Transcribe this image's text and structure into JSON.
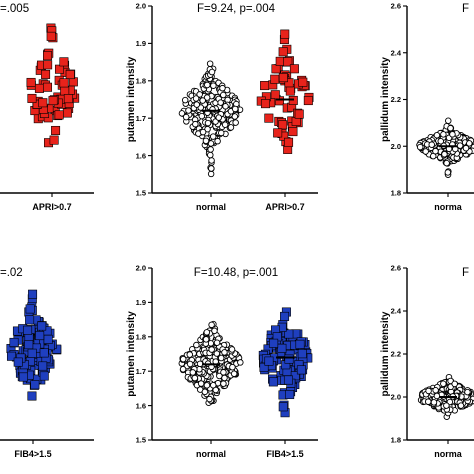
{
  "chart_data": [
    {
      "type": "scatter",
      "panel": "top-left",
      "annotation": "=.005",
      "categories": [
        "APRI>0.7"
      ],
      "series": [
        {
          "category": "APRI>0.7",
          "color": "#e8231b",
          "marker": "square",
          "n": 60,
          "center": 1.76,
          "spread": 0.065
        }
      ]
    },
    {
      "type": "scatter",
      "panel": "top-middle",
      "annotation": "F=9.24, p=.004",
      "ylabel": "putamen intensity",
      "ylim": [
        1.5,
        2.0
      ],
      "yticks": [
        "1.5",
        "1.6",
        "1.7",
        "1.8",
        "1.9",
        "2.0"
      ],
      "categories": [
        "normal",
        "APRI>0.7"
      ],
      "series": [
        {
          "category": "normal",
          "color": "#000000",
          "marker": "circle",
          "n": 260,
          "center": 1.72,
          "spread": 0.05,
          "mean": 1.72
        },
        {
          "category": "APRI>0.7",
          "color": "#e8231b",
          "marker": "square",
          "n": 60,
          "center": 1.755,
          "spread": 0.065,
          "mean": 1.75
        }
      ]
    },
    {
      "type": "scatter",
      "panel": "top-right",
      "annotation": "F",
      "ylabel": "pallidum intensity",
      "ylim": [
        1.8,
        2.6
      ],
      "yticks": [
        "1.8",
        "2.0",
        "2.2",
        "2.4",
        "2.6"
      ],
      "categories": [
        "norma"
      ],
      "series": [
        {
          "category": "norma",
          "color": "#000000",
          "marker": "circle",
          "n": 260,
          "center": 2.0,
          "spread": 0.035,
          "mean": 2.0
        }
      ]
    },
    {
      "type": "scatter",
      "panel": "bottom-left",
      "annotation": "=.02",
      "categories": [
        "FIB4>1.5"
      ],
      "series": [
        {
          "category": "FIB4>1.5",
          "color": "#1f3fbf",
          "marker": "square",
          "n": 120,
          "center": 1.76,
          "spread": 0.06
        }
      ]
    },
    {
      "type": "scatter",
      "panel": "bottom-middle",
      "annotation": "F=10.48, p=.001",
      "ylabel": "putamen intensity",
      "ylim": [
        1.5,
        2.0
      ],
      "yticks": [
        "1.5",
        "1.6",
        "1.7",
        "1.8",
        "1.9",
        "2.0"
      ],
      "categories": [
        "normal",
        "FIB4>1.5"
      ],
      "series": [
        {
          "category": "normal",
          "color": "#000000",
          "marker": "circle",
          "n": 260,
          "center": 1.72,
          "spread": 0.05,
          "mean": 1.72
        },
        {
          "category": "FIB4>1.5",
          "color": "#1f3fbf",
          "marker": "square",
          "n": 120,
          "center": 1.74,
          "spread": 0.06,
          "mean": 1.74
        }
      ]
    },
    {
      "type": "scatter",
      "panel": "bottom-right",
      "annotation": "F",
      "ylabel": "pallidum intensity",
      "ylim": [
        1.8,
        2.6
      ],
      "yticks": [
        "1.8",
        "2.0",
        "2.2",
        "2.4",
        "2.6"
      ],
      "categories": [
        "norma"
      ],
      "series": [
        {
          "category": "norma",
          "color": "#000000",
          "marker": "circle",
          "n": 260,
          "center": 2.0,
          "spread": 0.035,
          "mean": 2.0
        }
      ]
    }
  ]
}
